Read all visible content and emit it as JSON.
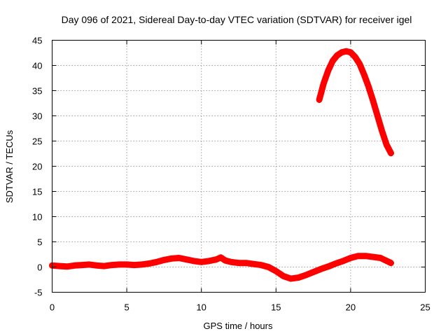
{
  "chart_data": {
    "type": "line",
    "title": "Day 096 of 2021, Sidereal Day-to-day VTEC variation (SDTVAR) for receiver igel",
    "xlabel": "GPS time / hours",
    "ylabel": "SDTVAR / TECUs",
    "xlim": [
      0,
      25
    ],
    "ylim": [
      -5,
      45
    ],
    "xticks": [
      0,
      5,
      10,
      15,
      20,
      25
    ],
    "yticks": [
      -5,
      0,
      5,
      10,
      15,
      20,
      25,
      30,
      35,
      40,
      45
    ],
    "grid": true,
    "series_color": "#ff0000",
    "series": [
      {
        "name": "SDTVAR",
        "x": [
          0.0,
          0.5,
          1.0,
          1.5,
          2.0,
          2.5,
          3.0,
          3.5,
          4.0,
          4.5,
          5.0,
          5.5,
          6.0,
          6.5,
          7.0,
          7.5,
          8.0,
          8.5,
          9.0,
          9.5,
          10.0,
          10.5,
          11.0,
          11.3,
          11.6,
          12.0,
          12.5,
          13.0,
          13.5,
          14.0,
          14.5,
          15.0,
          15.5,
          16.0,
          16.5,
          17.0,
          17.5,
          18.0,
          18.5,
          19.0,
          19.5,
          20.0,
          20.5,
          21.0,
          21.5,
          22.0,
          22.5,
          22.7
        ],
        "y": [
          0.3,
          0.2,
          0.1,
          0.3,
          0.4,
          0.5,
          0.3,
          0.2,
          0.4,
          0.5,
          0.5,
          0.4,
          0.5,
          0.7,
          1.0,
          1.4,
          1.7,
          1.8,
          1.5,
          1.2,
          1.0,
          1.2,
          1.5,
          1.9,
          1.3,
          1.0,
          0.8,
          0.8,
          0.6,
          0.4,
          0.0,
          -0.8,
          -1.8,
          -2.3,
          -2.1,
          -1.6,
          -1.0,
          -0.4,
          0.1,
          0.7,
          1.2,
          1.8,
          2.2,
          2.2,
          2.0,
          1.8,
          1.1,
          0.8
        ]
      },
      {
        "name": "SDTVAR",
        "x": [
          17.9,
          18.2,
          18.5,
          18.8,
          19.1,
          19.4,
          19.7,
          20.0,
          20.3,
          20.6,
          20.9,
          21.2,
          21.5,
          21.8,
          22.1,
          22.4,
          22.7
        ],
        "y": [
          33.2,
          36.5,
          39.0,
          40.9,
          42.0,
          42.6,
          42.8,
          42.6,
          41.7,
          40.3,
          38.2,
          35.8,
          33.0,
          30.0,
          27.0,
          24.3,
          22.6
        ]
      }
    ]
  }
}
